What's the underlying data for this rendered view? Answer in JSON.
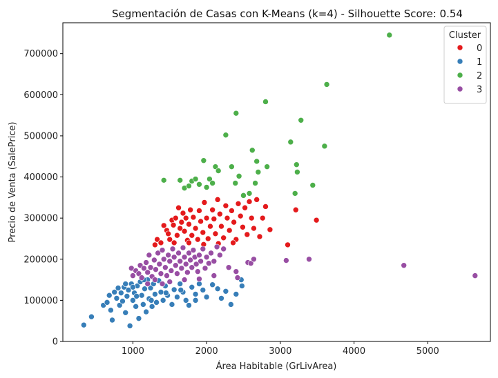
{
  "chart_data": {
    "type": "scatter",
    "title": "Segmentación de Casas con K-Means (k=4) - Silhouette Score: 0.54",
    "xlabel": "Área Habitable (GrLivArea)",
    "ylabel": "Precio de Venta (SalePrice)",
    "xlim": [
      50,
      5850
    ],
    "ylim": [
      0,
      775000
    ],
    "xticks": [
      1000,
      2000,
      3000,
      4000,
      5000
    ],
    "yticks": [
      0,
      100000,
      200000,
      300000,
      400000,
      500000,
      600000,
      700000
    ],
    "grid": false,
    "legend": {
      "title": "Cluster",
      "placement": "upper-right"
    },
    "series": [
      {
        "name": "0",
        "color": "#e41a1c",
        "points": [
          [
            1300,
            235000
          ],
          [
            1330,
            248000
          ],
          [
            1380,
            240000
          ],
          [
            1420,
            282000
          ],
          [
            1460,
            270000
          ],
          [
            1480,
            262000
          ],
          [
            1500,
            248000
          ],
          [
            1530,
            295000
          ],
          [
            1550,
            283000
          ],
          [
            1580,
            300000
          ],
          [
            1600,
            258000
          ],
          [
            1620,
            325000
          ],
          [
            1640,
            275000
          ],
          [
            1660,
            290000
          ],
          [
            1680,
            312000
          ],
          [
            1700,
            268000
          ],
          [
            1720,
            300000
          ],
          [
            1740,
            246000
          ],
          [
            1760,
            285000
          ],
          [
            1780,
            320000
          ],
          [
            1800,
            258000
          ],
          [
            1820,
            302000
          ],
          [
            1850,
            275000
          ],
          [
            1880,
            248000
          ],
          [
            1900,
            318000
          ],
          [
            1920,
            292000
          ],
          [
            1950,
            265000
          ],
          [
            1970,
            338000
          ],
          [
            2000,
            300000
          ],
          [
            2020,
            250000
          ],
          [
            2050,
            280000
          ],
          [
            2080,
            320000
          ],
          [
            2100,
            298000
          ],
          [
            2120,
            262000
          ],
          [
            2150,
            345000
          ],
          [
            2180,
            310000
          ],
          [
            2200,
            280000
          ],
          [
            2230,
            252000
          ],
          [
            2260,
            330000
          ],
          [
            2280,
            300000
          ],
          [
            2310,
            270000
          ],
          [
            2340,
            318000
          ],
          [
            2370,
            290000
          ],
          [
            2400,
            248000
          ],
          [
            2430,
            335000
          ],
          [
            2460,
            305000
          ],
          [
            2490,
            278000
          ],
          [
            2520,
            325000
          ],
          [
            2550,
            260000
          ],
          [
            2580,
            340000
          ],
          [
            2610,
            300000
          ],
          [
            2640,
            275000
          ],
          [
            2680,
            345000
          ],
          [
            2720,
            255000
          ],
          [
            2760,
            300000
          ],
          [
            2800,
            328000
          ],
          [
            2860,
            272000
          ],
          [
            3100,
            235000
          ],
          [
            3210,
            320000
          ],
          [
            3490,
            295000
          ],
          [
            1560,
            240000
          ],
          [
            1760,
            240000
          ],
          [
            1960,
            236000
          ],
          [
            2160,
            238000
          ],
          [
            2360,
            240000
          ]
        ]
      },
      {
        "name": "1",
        "color": "#377eb8",
        "points": [
          [
            334,
            40000
          ],
          [
            438,
            60000
          ],
          [
            600,
            88000
          ],
          [
            650,
            95000
          ],
          [
            680,
            112000
          ],
          [
            700,
            76000
          ],
          [
            720,
            52000
          ],
          [
            750,
            120000
          ],
          [
            780,
            105000
          ],
          [
            800,
            130000
          ],
          [
            820,
            88000
          ],
          [
            840,
            118000
          ],
          [
            860,
            98000
          ],
          [
            880,
            132000
          ],
          [
            900,
            70000
          ],
          [
            920,
            110000
          ],
          [
            940,
            125000
          ],
          [
            960,
            38000
          ],
          [
            980,
            140000
          ],
          [
            1000,
            100000
          ],
          [
            1020,
            118000
          ],
          [
            1040,
            85000
          ],
          [
            1060,
            135000
          ],
          [
            1080,
            56000
          ],
          [
            1100,
            145000
          ],
          [
            1120,
            112000
          ],
          [
            1140,
            90000
          ],
          [
            1160,
            128000
          ],
          [
            1180,
            72000
          ],
          [
            1200,
            150000
          ],
          [
            1220,
            104000
          ],
          [
            1240,
            130000
          ],
          [
            1260,
            85000
          ],
          [
            1280,
            140000
          ],
          [
            1300,
            115000
          ],
          [
            1320,
            95000
          ],
          [
            1350,
            148000
          ],
          [
            1380,
            120000
          ],
          [
            1410,
            100000
          ],
          [
            1440,
            135000
          ],
          [
            1470,
            112000
          ],
          [
            1500,
            145000
          ],
          [
            1530,
            90000
          ],
          [
            1560,
            126000
          ],
          [
            1600,
            108000
          ],
          [
            1640,
            140000
          ],
          [
            1680,
            120000
          ],
          [
            1720,
            100000
          ],
          [
            1760,
            88000
          ],
          [
            1800,
            132000
          ],
          [
            1850,
            115000
          ],
          [
            1900,
            140000
          ],
          [
            1950,
            125000
          ],
          [
            2000,
            108000
          ],
          [
            2080,
            138000
          ],
          [
            2150,
            128000
          ],
          [
            2200,
            105000
          ],
          [
            2260,
            122000
          ],
          [
            2330,
            90000
          ],
          [
            2400,
            115000
          ],
          [
            2470,
            150000
          ],
          [
            2480,
            135000
          ],
          [
            1000,
            132000
          ],
          [
            1150,
            150000
          ],
          [
            900,
            140000
          ],
          [
            1050,
            110000
          ],
          [
            1250,
            100000
          ],
          [
            1450,
            118000
          ],
          [
            1650,
            125000
          ],
          [
            1850,
            100000
          ]
        ]
      },
      {
        "name": "2",
        "color": "#4daf4a",
        "points": [
          [
            1420,
            392000
          ],
          [
            1640,
            392000
          ],
          [
            1700,
            373000
          ],
          [
            1760,
            378000
          ],
          [
            1800,
            390000
          ],
          [
            1850,
            395000
          ],
          [
            1900,
            382000
          ],
          [
            1960,
            440000
          ],
          [
            2000,
            375000
          ],
          [
            2040,
            395000
          ],
          [
            2080,
            385000
          ],
          [
            2120,
            425000
          ],
          [
            2160,
            415000
          ],
          [
            2260,
            502000
          ],
          [
            2340,
            425000
          ],
          [
            2390,
            385000
          ],
          [
            2400,
            555000
          ],
          [
            2440,
            402000
          ],
          [
            2500,
            355000
          ],
          [
            2580,
            360000
          ],
          [
            2620,
            465000
          ],
          [
            2660,
            385000
          ],
          [
            2680,
            438000
          ],
          [
            2700,
            412000
          ],
          [
            2800,
            583000
          ],
          [
            2820,
            425000
          ],
          [
            3140,
            485000
          ],
          [
            3200,
            360000
          ],
          [
            3220,
            430000
          ],
          [
            3230,
            412000
          ],
          [
            3280,
            538000
          ],
          [
            3440,
            380000
          ],
          [
            3600,
            475000
          ],
          [
            3630,
            625000
          ],
          [
            4480,
            745000
          ]
        ]
      },
      {
        "name": "3",
        "color": "#984ea3",
        "points": [
          [
            980,
            178000
          ],
          [
            1000,
            160000
          ],
          [
            1040,
            172000
          ],
          [
            1080,
            165000
          ],
          [
            1100,
            185000
          ],
          [
            1120,
            155000
          ],
          [
            1150,
            178000
          ],
          [
            1180,
            192000
          ],
          [
            1200,
            168000
          ],
          [
            1220,
            210000
          ],
          [
            1240,
            180000
          ],
          [
            1260,
            158000
          ],
          [
            1290,
            198000
          ],
          [
            1310,
            175000
          ],
          [
            1340,
            215000
          ],
          [
            1360,
            188000
          ],
          [
            1380,
            165000
          ],
          [
            1400,
            222000
          ],
          [
            1420,
            200000
          ],
          [
            1440,
            180000
          ],
          [
            1460,
            160000
          ],
          [
            1480,
            210000
          ],
          [
            1500,
            195000
          ],
          [
            1520,
            172000
          ],
          [
            1540,
            225000
          ],
          [
            1560,
            205000
          ],
          [
            1580,
            185000
          ],
          [
            1600,
            165000
          ],
          [
            1620,
            215000
          ],
          [
            1640,
            195000
          ],
          [
            1660,
            178000
          ],
          [
            1680,
            228000
          ],
          [
            1700,
            205000
          ],
          [
            1720,
            188000
          ],
          [
            1740,
            168000
          ],
          [
            1760,
            215000
          ],
          [
            1780,
            198000
          ],
          [
            1800,
            180000
          ],
          [
            1820,
            222000
          ],
          [
            1840,
            205000
          ],
          [
            1860,
            188000
          ],
          [
            1880,
            170000
          ],
          [
            1900,
            210000
          ],
          [
            1920,
            195000
          ],
          [
            1950,
            225000
          ],
          [
            1980,
            178000
          ],
          [
            2000,
            205000
          ],
          [
            2030,
            190000
          ],
          [
            2060,
            215000
          ],
          [
            2100,
            195000
          ],
          [
            2140,
            230000
          ],
          [
            2180,
            210000
          ],
          [
            2230,
            225000
          ],
          [
            2300,
            180000
          ],
          [
            2400,
            170000
          ],
          [
            2420,
            155000
          ],
          [
            2560,
            192000
          ],
          [
            2600,
            190000
          ],
          [
            2640,
            200000
          ],
          [
            3080,
            197000
          ],
          [
            3390,
            200000
          ],
          [
            4676,
            185000
          ],
          [
            5642,
            160000
          ],
          [
            1300,
            150000
          ],
          [
            1500,
            145000
          ],
          [
            1700,
            150000
          ],
          [
            1900,
            152000
          ],
          [
            2100,
            160000
          ],
          [
            1200,
            140000
          ],
          [
            1400,
            140000
          ]
        ]
      }
    ]
  }
}
